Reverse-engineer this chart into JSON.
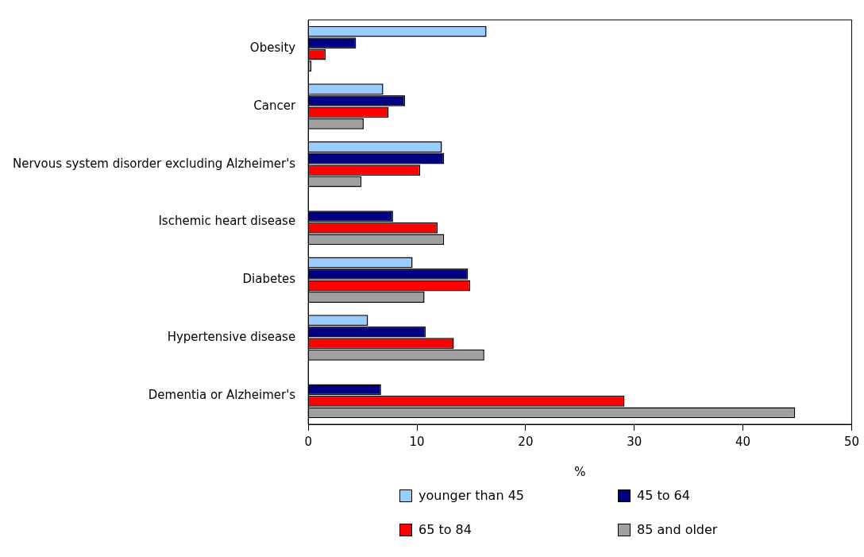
{
  "chart_data": {
    "type": "bar",
    "orientation": "horizontal",
    "xlabel": "%",
    "categories": [
      "Obesity",
      "Cancer",
      "Nervous system disorder excluding Alzheimer's",
      "Ischemic heart disease",
      "Diabetes",
      "Hypertensive disease",
      "Dementia or Alzheimer's"
    ],
    "series": [
      {
        "name": "younger than 45",
        "color": "#99ccff",
        "values": [
          16.4,
          6.9,
          12.3,
          null,
          9.6,
          5.5,
          null
        ]
      },
      {
        "name": "45 to 64",
        "color": "#000080",
        "values": [
          4.4,
          8.9,
          12.5,
          7.8,
          14.7,
          10.8,
          6.7
        ]
      },
      {
        "name": "65 to 84",
        "color": "#ff0000",
        "values": [
          1.6,
          7.4,
          10.3,
          11.9,
          14.9,
          13.4,
          29.1
        ]
      },
      {
        "name": "85 and older",
        "color": "#a0a0a0",
        "values": [
          0.3,
          5.1,
          4.9,
          12.5,
          10.7,
          16.2,
          44.8
        ]
      }
    ],
    "xlim": [
      0,
      50
    ],
    "xticks": [
      0,
      10,
      20,
      30,
      40,
      50
    ],
    "grid": false,
    "legend": "bottom"
  }
}
